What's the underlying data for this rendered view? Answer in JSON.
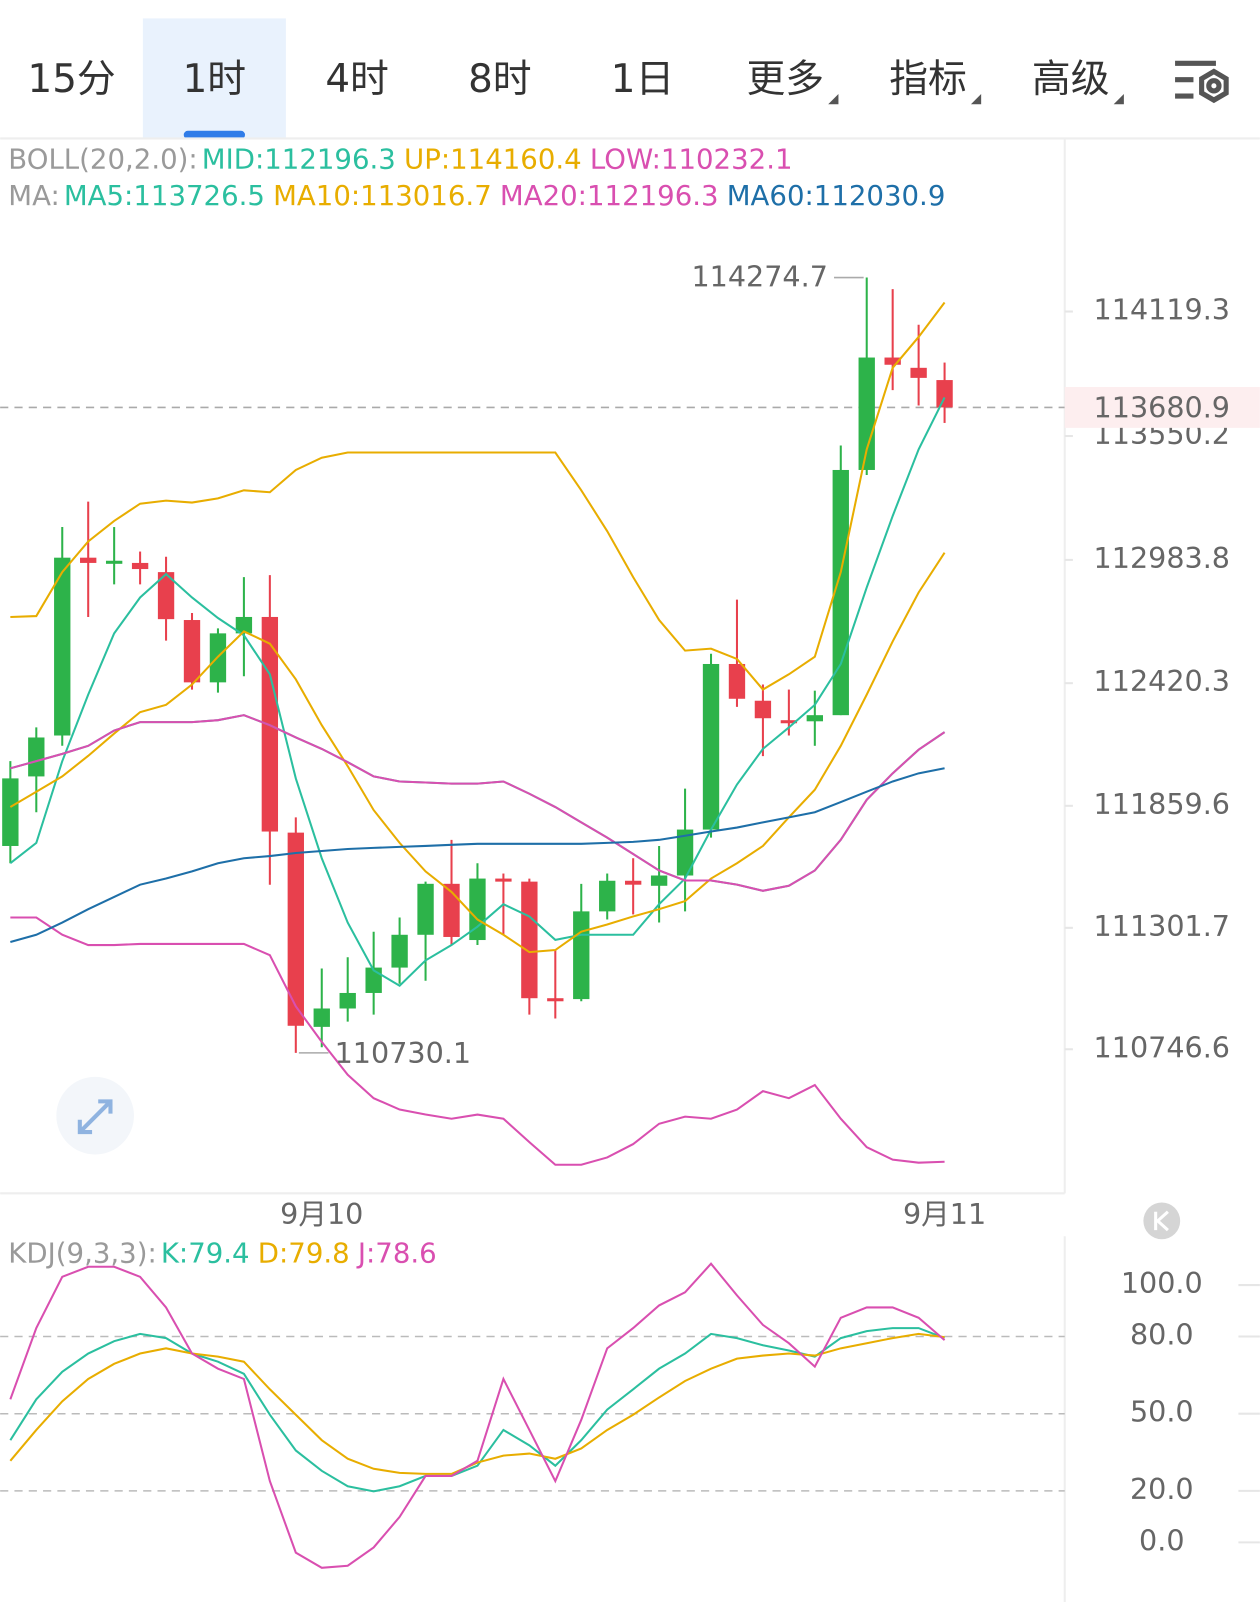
{
  "tabs": [
    "15分",
    "1时",
    "4时",
    "8时",
    "1日",
    "更多",
    "指标",
    "高级"
  ],
  "selected_tab": 1,
  "chart_data": [
    {
      "type": "candlestick",
      "legend_groups": [
        {
          "title": "BOLL(20,2.0):",
          "series": [
            0,
            1,
            2
          ]
        },
        {
          "title": "MA:",
          "series": [
            3,
            4,
            5,
            6
          ]
        }
      ],
      "categories": [
        null,
        null,
        null,
        null,
        null,
        null,
        null,
        null,
        null,
        null,
        null,
        null,
        "9月10",
        null,
        null,
        null,
        null,
        null,
        null,
        null,
        null,
        null,
        null,
        null,
        null,
        null,
        null,
        null,
        null,
        null,
        null,
        null,
        null,
        null,
        null,
        null,
        "9月11"
      ],
      "open": [
        111676,
        111994,
        112181,
        112994,
        112970,
        112970,
        112928,
        112709,
        112424,
        112648,
        112723,
        111737,
        110849,
        110933,
        111004,
        111120,
        111270,
        111503,
        111246,
        111527,
        111513,
        110980,
        110976,
        111377,
        111517,
        111494,
        111541,
        111751,
        112508,
        112340,
        112251,
        112246,
        112274,
        113395,
        113909,
        113862,
        113806
      ],
      "high": [
        112064,
        112218,
        113134,
        113250,
        113134,
        113022,
        112998,
        112741,
        112671,
        112905,
        112914,
        111807,
        111116,
        111167,
        111284,
        111349,
        111513,
        111704,
        111597,
        111550,
        111527,
        111200,
        111503,
        111550,
        111620,
        111676,
        111938,
        112555,
        112802,
        112414,
        112391,
        112386,
        113507,
        114274.7,
        114222,
        114059,
        113886
      ],
      "low": [
        111597,
        111830,
        112134,
        112723,
        112872,
        112872,
        112615,
        112391,
        112377,
        112452,
        111499,
        110730.1,
        110756,
        110873,
        110905,
        111046,
        111060,
        111223,
        111223,
        111270,
        110905,
        110887,
        110966,
        111340,
        111363,
        111326,
        111377,
        111714,
        112312,
        112087,
        112181,
        112134,
        112274,
        113372,
        113760,
        113690,
        113610
      ],
      "close": [
        111985,
        112172,
        112994,
        112970,
        112980,
        112942,
        112713,
        112424,
        112648,
        112723,
        111742,
        110854,
        110933,
        111004,
        111120,
        111270,
        111503,
        111260,
        111527,
        111513,
        110980,
        110976,
        111377,
        111517,
        111499,
        111541,
        111751,
        112508,
        112349,
        112260,
        112242,
        112274,
        113395,
        113909,
        113876,
        113816,
        113680.9
      ],
      "up_color": "#2db34a",
      "down_color": "#e8404d",
      "series": [
        {
          "name": "MID:112196.3",
          "color": "#2bbf9f",
          "values": [
            112031,
            112064,
            112097,
            112134,
            112204,
            112242,
            112242,
            112242,
            112251,
            112274,
            112228,
            112172,
            112120,
            112059,
            111994,
            111971,
            111966,
            111961,
            111961,
            111971,
            111915,
            111854,
            111784,
            111714,
            111639,
            111564,
            111518,
            111518,
            111499,
            111471,
            111494,
            111564,
            111704,
            111887,
            112008,
            112116,
            112196.3
          ]
        },
        {
          "name": "UP:114160.4",
          "color": "#e8ad00",
          "values": [
            112723,
            112727,
            112928,
            113068,
            113162,
            113241,
            113255,
            113246,
            113265,
            113302,
            113293,
            113395,
            113451,
            113475,
            113475,
            113475,
            113475,
            113475,
            113475,
            113475,
            113475,
            113475,
            113302,
            113115,
            112905,
            112709,
            112569,
            112578,
            112531,
            112391,
            112461,
            112541,
            112928,
            113489,
            113862,
            114003,
            114160.4
          ]
        },
        {
          "name": "LOW:110232.1",
          "color": "#d94fb0",
          "values": [
            111349,
            111349,
            111270,
            111223,
            111223,
            111228,
            111228,
            111228,
            111228,
            111228,
            111177,
            110943,
            110780,
            110630,
            110523,
            110471,
            110448,
            110429,
            110448,
            110429,
            110322,
            110219,
            110219,
            110252,
            110313,
            110406,
            110439,
            110429,
            110471,
            110555,
            110523,
            110583,
            110429,
            110299,
            110242,
            110228,
            110232.1
          ]
        },
        {
          "name": "MA5:113726.5",
          "color": "#2bbf9f",
          "values": [
            111597,
            111690,
            112064,
            112368,
            112648,
            112812,
            112919,
            112812,
            112718,
            112639,
            112461,
            111985,
            111620,
            111326,
            111107,
            111037,
            111153,
            111223,
            111307,
            111410,
            111354,
            111247,
            111270,
            111270,
            111270,
            111410,
            111527,
            111751,
            111957,
            112120,
            112218,
            112321,
            112508,
            112858,
            113185,
            113489,
            113726.5
          ]
        },
        {
          "name": "MA10:113016.7",
          "color": "#e8ad00",
          "values": [
            111854,
            111924,
            111994,
            112088,
            112190,
            112288,
            112321,
            112414,
            112541,
            112657,
            112601,
            112438,
            112228,
            112041,
            111840,
            111690,
            111560,
            111466,
            111340,
            111270,
            111191,
            111200,
            111284,
            111317,
            111354,
            111387,
            111424,
            111527,
            111597,
            111676,
            111807,
            111933,
            112134,
            112368,
            112611,
            112835,
            113016.7
          ]
        },
        {
          "name": "MA20:112196.3",
          "color": "#d94fb0",
          "values": [
            112031,
            112064,
            112097,
            112134,
            112204,
            112242,
            112242,
            112242,
            112251,
            112274,
            112228,
            112172,
            112120,
            112059,
            111994,
            111971,
            111966,
            111961,
            111961,
            111971,
            111915,
            111854,
            111784,
            111714,
            111639,
            111564,
            111518,
            111518,
            111499,
            111471,
            111494,
            111564,
            111704,
            111887,
            112008,
            112116,
            112196.3
          ]
        },
        {
          "name": "MA60:112030.9",
          "color": "#1e6fa8",
          "values": [
            111237,
            111270,
            111326,
            111387,
            111443,
            111499,
            111527,
            111560,
            111597,
            111620,
            111630,
            111644,
            111653,
            111662,
            111667,
            111672,
            111676,
            111681,
            111686,
            111686,
            111686,
            111686,
            111686,
            111690,
            111695,
            111704,
            111723,
            111742,
            111760,
            111784,
            111807,
            111830,
            111877,
            111924,
            111971,
            112008,
            112030.9
          ]
        }
      ],
      "ylim": [
        110088,
        114913
      ],
      "yticks": [
        114119.3,
        113550.2,
        112983.8,
        112420.3,
        111859.6,
        111301.7,
        110746.6
      ]
    },
    {
      "type": "line",
      "legend_groups": [
        {
          "title": "KDJ(9,3,3):",
          "series": [
            0,
            1,
            2
          ]
        }
      ],
      "series": [
        {
          "name": "K:79.4",
          "color": "#2bbf9f",
          "values": [
            39.7,
            55.6,
            66.3,
            73.4,
            78.2,
            81.0,
            79.4,
            73.4,
            70.2,
            65.5,
            49.6,
            35.7,
            27.8,
            21.8,
            19.8,
            21.8,
            25.8,
            25.8,
            29.8,
            43.7,
            37.7,
            29.8,
            39.7,
            51.6,
            59.5,
            67.5,
            73.4,
            81.0,
            79.4,
            76.6,
            74.6,
            72.2,
            79.4,
            82.1,
            83.3,
            83.3,
            79.4
          ]
        },
        {
          "name": "D:79.8",
          "color": "#e8ad00",
          "values": [
            31.7,
            43.7,
            54.8,
            63.5,
            69.4,
            73.4,
            75.4,
            73.4,
            72.2,
            70.2,
            59.5,
            49.6,
            39.7,
            32.5,
            28.6,
            27.0,
            26.6,
            26.6,
            31.0,
            33.7,
            34.5,
            32.5,
            36.5,
            43.7,
            49.6,
            56.3,
            62.7,
            67.5,
            71.4,
            72.6,
            73.4,
            72.6,
            75.4,
            77.4,
            79.4,
            81.0,
            79.8
          ]
        },
        {
          "name": "J:78.6",
          "color": "#d94fb0",
          "values": [
            55.6,
            83.3,
            103.2,
            107.1,
            107.1,
            103.2,
            91.3,
            73.4,
            67.5,
            63.5,
            23.8,
            -4.0,
            -9.9,
            -9.1,
            -2.0,
            9.9,
            25.8,
            25.8,
            31.7,
            63.5,
            43.7,
            23.8,
            47.6,
            75.4,
            83.3,
            92.1,
            97.2,
            108.3,
            96.0,
            84.5,
            77.4,
            68.3,
            87.3,
            91.3,
            91.3,
            87.3,
            78.6
          ]
        }
      ],
      "ylim": [
        -22,
        117
      ],
      "yticks": [
        {
          "value": 100,
          "label": "100.0"
        },
        {
          "value": 80,
          "label": "80.0"
        },
        {
          "value": 50,
          "label": "50.0"
        },
        {
          "value": 20,
          "label": "20.0"
        },
        {
          "value": 0,
          "label": "0.0"
        }
      ]
    }
  ]
}
